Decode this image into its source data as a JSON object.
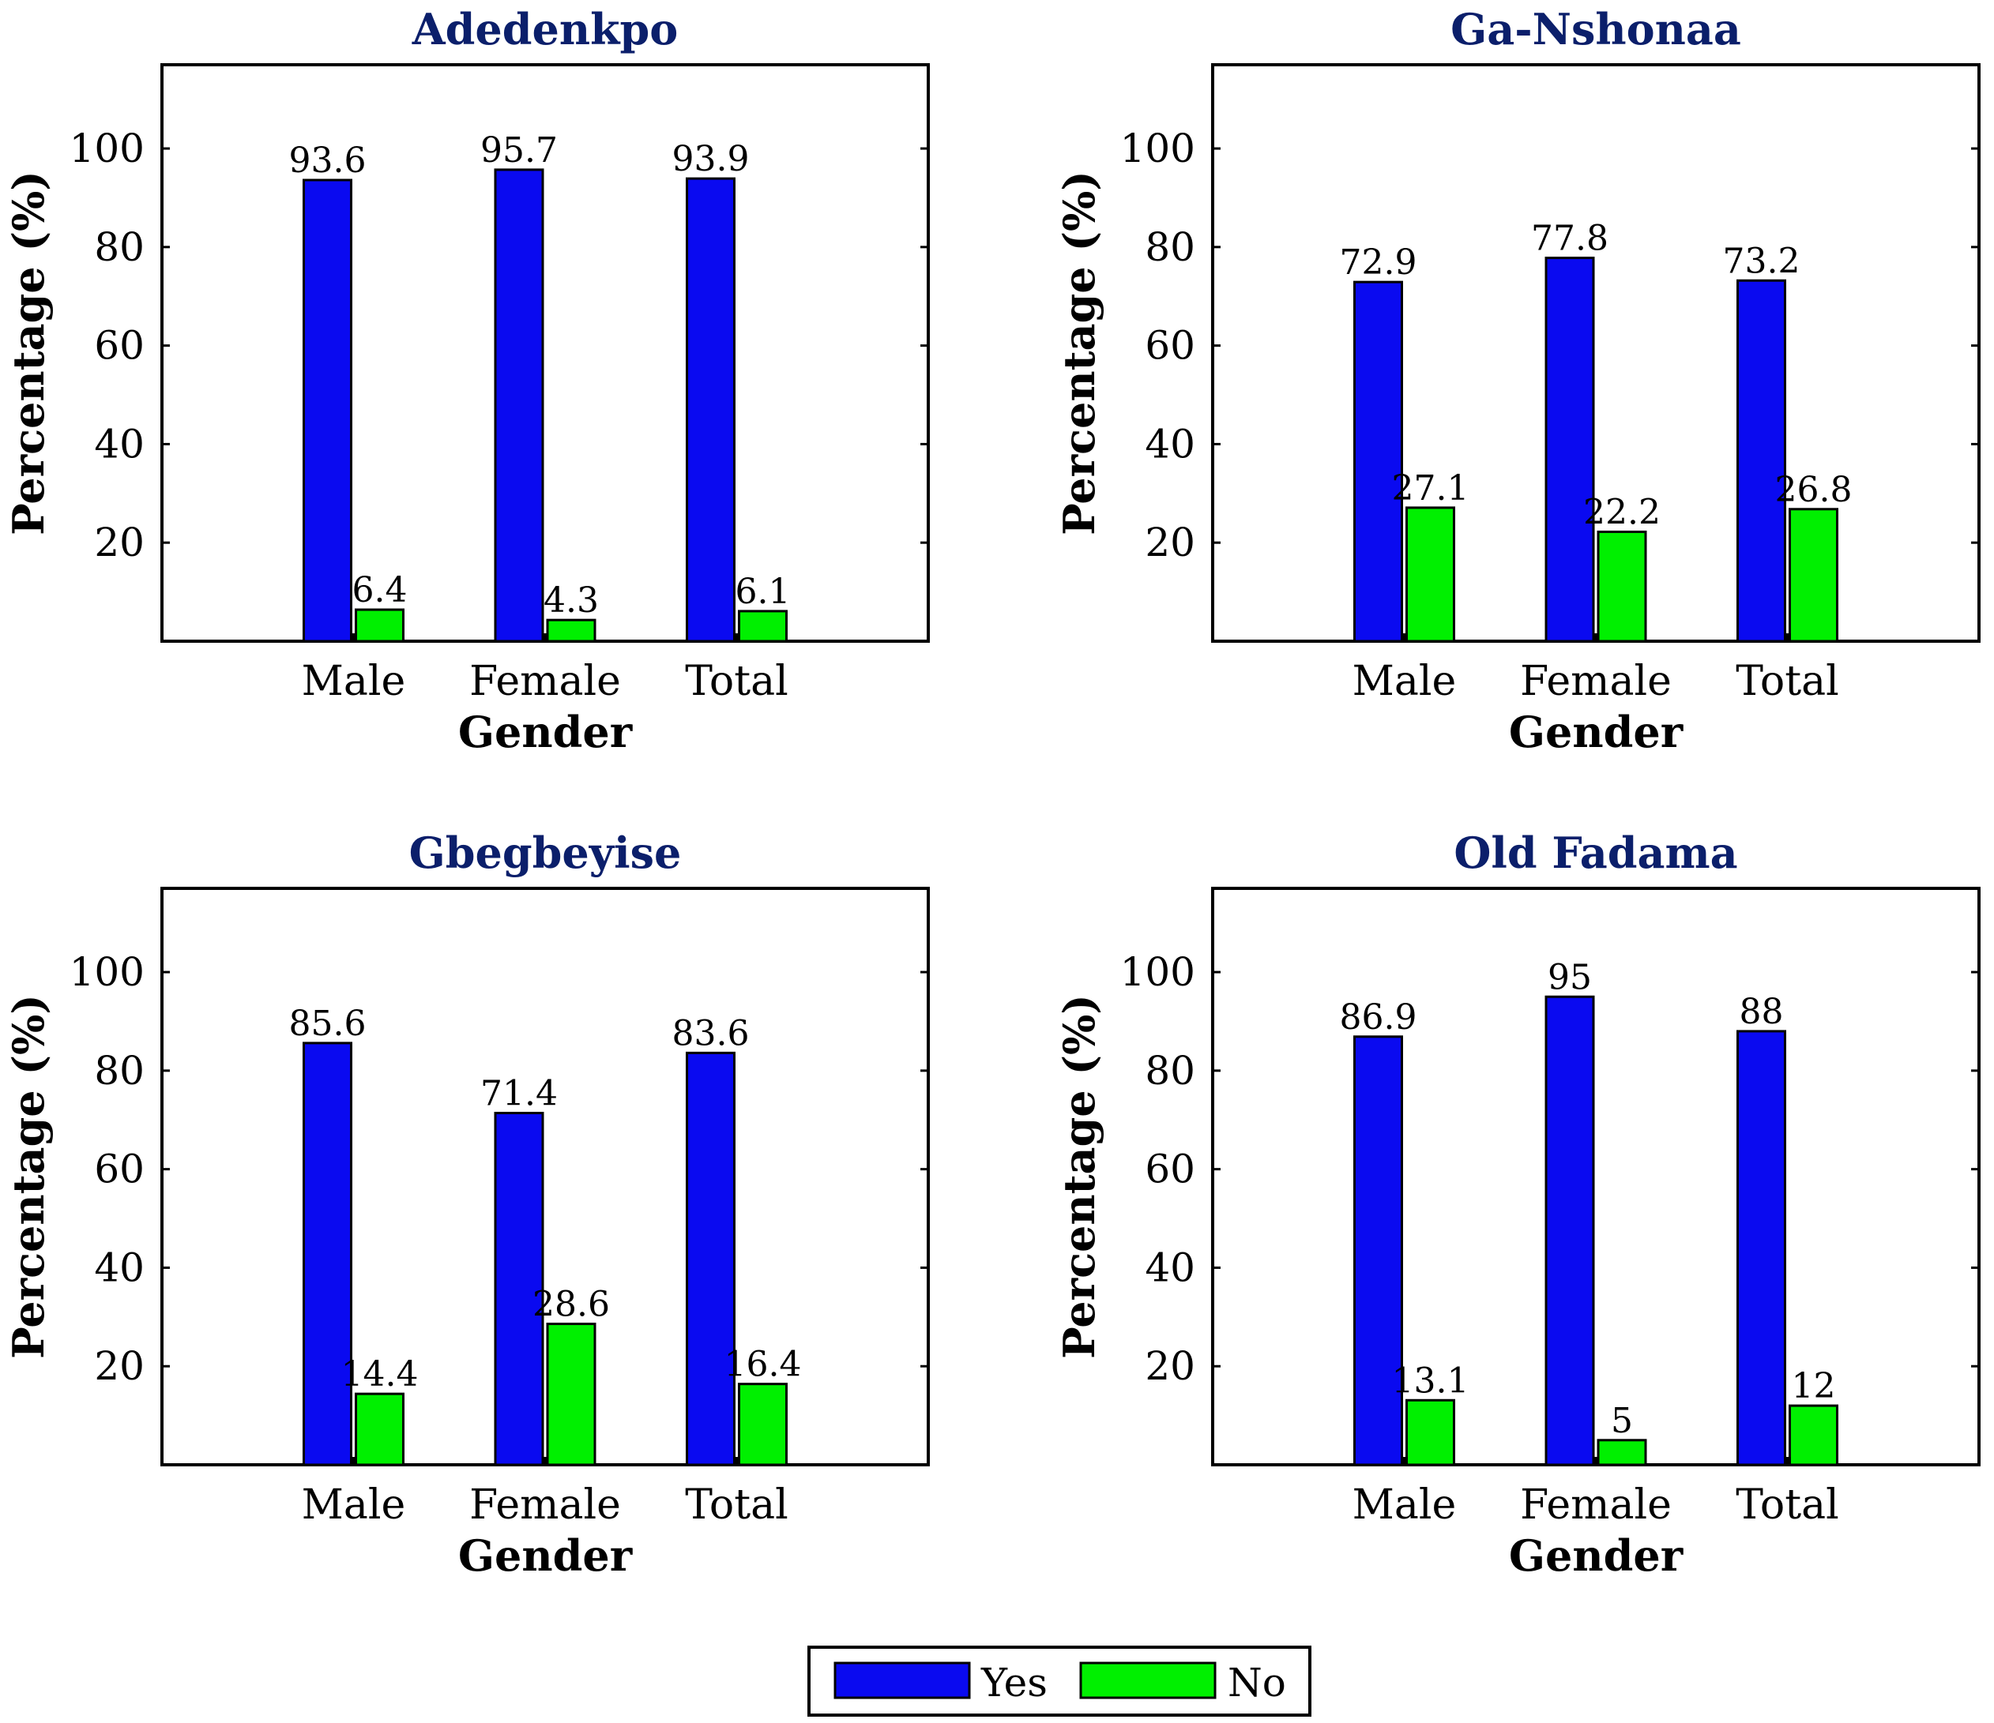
{
  "chart_data": [
    {
      "type": "bar",
      "title": "Adedenkpo",
      "categories": [
        "Male",
        "Female",
        "Total"
      ],
      "series": [
        {
          "name": "Yes",
          "values": [
            93.6,
            95.7,
            93.9
          ]
        },
        {
          "name": "No",
          "values": [
            6.4,
            4.3,
            6.1
          ]
        }
      ],
      "data_labels": {
        "Yes": [
          "93.6",
          "95.7",
          "93.9"
        ],
        "No": [
          "6.4",
          "4.3",
          "6.1"
        ]
      },
      "xlabel": "Gender",
      "ylabel": "Percentage (%)",
      "ylim": [
        0,
        117
      ],
      "yticks": [
        "20",
        "40",
        "60",
        "80",
        "100"
      ],
      "grid": false
    },
    {
      "type": "bar",
      "title": "Ga-Nshonaa",
      "categories": [
        "Male",
        "Female",
        "Total"
      ],
      "series": [
        {
          "name": "Yes",
          "values": [
            72.9,
            77.8,
            73.2
          ]
        },
        {
          "name": "No",
          "values": [
            27.1,
            22.2,
            26.8
          ]
        }
      ],
      "data_labels": {
        "Yes": [
          "72.9",
          "77.8",
          "73.2"
        ],
        "No": [
          "27.1",
          "22.2",
          "26.8"
        ]
      },
      "xlabel": "Gender",
      "ylabel": "Percentage (%)",
      "ylim": [
        0,
        117
      ],
      "yticks": [
        "20",
        "40",
        "60",
        "80",
        "100"
      ],
      "grid": false
    },
    {
      "type": "bar",
      "title": "Gbegbeyise",
      "categories": [
        "Male",
        "Female",
        "Total"
      ],
      "series": [
        {
          "name": "Yes",
          "values": [
            85.6,
            71.4,
            83.6
          ]
        },
        {
          "name": "No",
          "values": [
            14.4,
            28.6,
            16.4
          ]
        }
      ],
      "data_labels": {
        "Yes": [
          "85.6",
          "71.4",
          "83.6"
        ],
        "No": [
          "14.4",
          "28.6",
          "16.4"
        ]
      },
      "xlabel": "Gender",
      "ylabel": "Percentage (%)",
      "ylim": [
        0,
        117
      ],
      "yticks": [
        "20",
        "40",
        "60",
        "80",
        "100"
      ],
      "grid": false
    },
    {
      "type": "bar",
      "title": "Old Fadama",
      "categories": [
        "Male",
        "Female",
        "Total"
      ],
      "series": [
        {
          "name": "Yes",
          "values": [
            86.9,
            95,
            88
          ]
        },
        {
          "name": "No",
          "values": [
            13.1,
            5,
            12
          ]
        }
      ],
      "data_labels": {
        "Yes": [
          "86.9",
          "95",
          "88"
        ],
        "No": [
          "13.1",
          "5",
          "12"
        ]
      },
      "xlabel": "Gender",
      "ylabel": "Percentage (%)",
      "ylim": [
        0,
        117
      ],
      "yticks": [
        "20",
        "40",
        "60",
        "80",
        "100"
      ],
      "grid": false
    }
  ],
  "legend": {
    "position": "bottom-center",
    "items": [
      {
        "label": "Yes",
        "color": "#0a0af0"
      },
      {
        "label": "No",
        "color": "#00f000"
      }
    ]
  }
}
